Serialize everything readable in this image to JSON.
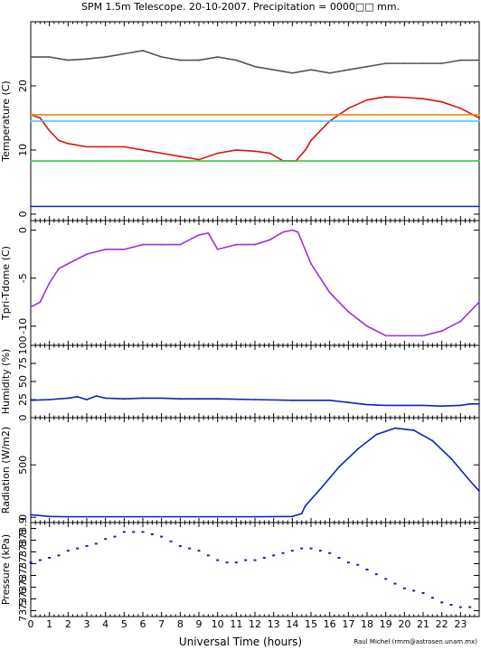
{
  "header": {
    "title": "SPM 1.5m Telescope. 20-10-2007. Precipitation = 0000□□ mm."
  },
  "footer": {
    "xlabel": "Universal Time (hours)",
    "credit": "Raul Michel (rmm@astrosen.unam.mx)"
  },
  "colors": {
    "gray": "#555555",
    "red": "#dd1111",
    "orange": "#ee8811",
    "cyan": "#33ccee",
    "green": "#22cc22",
    "blue": "#1122bb",
    "purple": "#9933dd"
  },
  "chart_data": [
    {
      "type": "line",
      "ylabel": "Temperature (C)",
      "xlim": [
        0,
        24
      ],
      "ylim": [
        -1,
        30
      ],
      "yticks": [
        "0",
        "10",
        "20"
      ],
      "ytick_values": [
        0,
        10,
        20
      ],
      "xticks": [
        "0",
        "1",
        "2",
        "3",
        "4",
        "5",
        "6",
        "7",
        "8",
        "9",
        "10",
        "11",
        "12",
        "13",
        "14",
        "15",
        "16",
        "17",
        "18",
        "19",
        "20",
        "21",
        "22",
        "23"
      ],
      "series": [
        {
          "color": "#555555",
          "x": [
            0,
            1,
            2,
            3,
            4,
            5,
            6,
            7,
            8,
            9,
            10,
            11,
            12,
            13,
            14,
            15,
            16,
            17,
            18,
            19,
            20,
            21,
            22,
            23,
            24
          ],
          "y": [
            24.5,
            24.5,
            24.0,
            24.2,
            24.5,
            25.0,
            25.5,
            24.5,
            24.0,
            24.0,
            24.5,
            24.0,
            23.0,
            22.5,
            22.0,
            22.5,
            22.0,
            22.5,
            23.0,
            23.5,
            23.5,
            23.5,
            23.5,
            24.0,
            24.0
          ]
        },
        {
          "color": "#dd1111",
          "x": [
            0,
            0.5,
            1,
            1.5,
            2,
            3,
            4,
            5,
            6,
            7,
            8,
            9,
            10,
            11,
            12,
            12.8,
            13.5,
            14.2,
            14.7,
            15,
            16,
            17,
            18,
            19,
            20,
            21,
            22,
            23,
            24
          ],
          "y": [
            15.5,
            15.0,
            13.0,
            11.5,
            11.0,
            10.5,
            10.5,
            10.5,
            10.0,
            9.5,
            9.0,
            8.5,
            9.5,
            10.0,
            9.8,
            9.5,
            8.3,
            8.3,
            10.0,
            11.5,
            14.5,
            16.5,
            17.8,
            18.3,
            18.2,
            18.0,
            17.5,
            16.5,
            15.0
          ]
        },
        {
          "color": "#ee8811",
          "x": [
            0,
            24
          ],
          "y": [
            15.5,
            15.5
          ]
        },
        {
          "color": "#33ccee",
          "x": [
            0,
            24
          ],
          "y": [
            14.5,
            14.5
          ]
        },
        {
          "color": "#22cc22",
          "x": [
            0,
            24
          ],
          "y": [
            8.3,
            8.3
          ]
        },
        {
          "color": "#1122bb",
          "x": [
            0,
            24
          ],
          "y": [
            1.2,
            1.2
          ]
        }
      ]
    },
    {
      "type": "line",
      "ylabel": "Tpri-Tdome (C)",
      "xlim": [
        0,
        24
      ],
      "ylim": [
        -12,
        1
      ],
      "yticks": [
        "0",
        "-5",
        "-10"
      ],
      "ytick_values": [
        0,
        -5,
        -10
      ],
      "series": [
        {
          "color": "#9933dd",
          "x": [
            0,
            0.5,
            1,
            1.5,
            2,
            3,
            4,
            5,
            6,
            7,
            8,
            9,
            9.5,
            10,
            11,
            12,
            12.8,
            13.5,
            14,
            14.3,
            15,
            16,
            17,
            18,
            19,
            20,
            21,
            22,
            23,
            24
          ],
          "y": [
            -8.0,
            -7.5,
            -5.5,
            -4.0,
            -3.5,
            -2.5,
            -2.0,
            -2.0,
            -1.5,
            -1.5,
            -1.5,
            -0.5,
            -0.3,
            -2.0,
            -1.5,
            -1.5,
            -1.0,
            -0.2,
            0.0,
            -0.2,
            -3.5,
            -6.5,
            -8.5,
            -10.0,
            -11.0,
            -11.0,
            -11.0,
            -10.5,
            -9.5,
            -7.5
          ]
        }
      ]
    },
    {
      "type": "line",
      "ylabel": "Humidity (%)",
      "xlim": [
        0,
        24
      ],
      "ylim": [
        0,
        100
      ],
      "yticks": [
        "0",
        "25",
        "50",
        "75",
        "100"
      ],
      "ytick_values": [
        0,
        25,
        50,
        75,
        100
      ],
      "series": [
        {
          "color": "#1122bb",
          "x": [
            0,
            1,
            2,
            2.5,
            3,
            3.5,
            4,
            5,
            6,
            7,
            8,
            9,
            10,
            12,
            14,
            16,
            17,
            18,
            19,
            20,
            21,
            22,
            23,
            23.5,
            24
          ],
          "y": [
            24,
            25,
            27,
            29,
            25,
            30,
            27,
            26,
            27,
            27,
            26,
            26,
            26,
            25,
            24,
            24,
            21,
            18,
            17,
            17,
            17,
            16,
            17,
            19,
            19
          ]
        }
      ]
    },
    {
      "type": "line",
      "ylabel": "Radiation (W/m2)",
      "xlim": [
        0,
        24
      ],
      "ylim": [
        -50,
        950
      ],
      "yticks": [
        "0",
        "500"
      ],
      "ytick_values": [
        0,
        500
      ],
      "series": [
        {
          "color": "#1122bb",
          "x": [
            0,
            1,
            2,
            4,
            6,
            8,
            10,
            12,
            14,
            14.5,
            14.7,
            15.5,
            16.5,
            17.5,
            18.5,
            19.5,
            20.5,
            21.5,
            22.5,
            23.5,
            24
          ],
          "y": [
            25,
            8,
            5,
            5,
            5,
            5,
            5,
            5,
            8,
            35,
            110,
            270,
            480,
            650,
            790,
            850,
            830,
            730,
            560,
            350,
            250
          ]
        }
      ]
    },
    {
      "type": "scatter",
      "ylabel": "Pressure (kPa)",
      "xlim": [
        0,
        24
      ],
      "ylim": [
        73.5,
        73.9
      ],
      "yticks": [
        "73.5",
        "73.6",
        "73.6",
        "73.7",
        "73.7",
        "73.8",
        "73.8",
        "73.9"
      ],
      "ytick_values": [
        73.525,
        73.575,
        73.625,
        73.675,
        73.725,
        73.775,
        73.825,
        73.875
      ],
      "series": [
        {
          "color": "#1122bb",
          "x": [
            0,
            0.5,
            1,
            1.5,
            2,
            2.5,
            3,
            3.5,
            4,
            4.5,
            5,
            5.5,
            6,
            6.5,
            7,
            7.5,
            8,
            8.5,
            9,
            9.5,
            10,
            10.5,
            11,
            11.5,
            12,
            12.5,
            13,
            13.5,
            14,
            14.5,
            15,
            15.5,
            16,
            16.5,
            17,
            17.5,
            18,
            18.5,
            19,
            19.5,
            20,
            20.5,
            21,
            21.5,
            22,
            22.5,
            23,
            23.5
          ],
          "y": [
            73.73,
            73.74,
            73.75,
            73.76,
            73.78,
            73.79,
            73.8,
            73.81,
            73.83,
            73.84,
            73.86,
            73.86,
            73.86,
            73.85,
            73.84,
            73.82,
            73.8,
            73.79,
            73.78,
            73.76,
            73.74,
            73.73,
            73.73,
            73.74,
            73.74,
            73.75,
            73.76,
            73.77,
            73.78,
            73.79,
            73.79,
            73.78,
            73.77,
            73.75,
            73.73,
            73.72,
            73.7,
            73.68,
            73.66,
            73.64,
            73.62,
            73.61,
            73.6,
            73.58,
            73.56,
            73.55,
            73.54,
            73.54
          ]
        }
      ]
    }
  ]
}
